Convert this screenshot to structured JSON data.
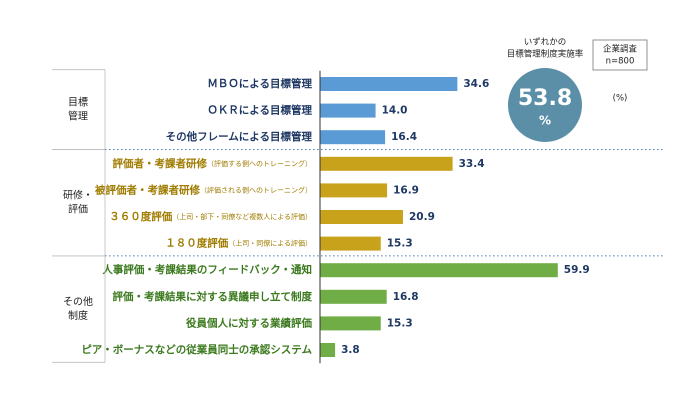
{
  "chart_data": {
    "type": "bar",
    "orientation": "horizontal",
    "groups": [
      {
        "label": [
          "目標",
          "管理"
        ],
        "color": "#5b9bd5",
        "text_color": "#1f3864",
        "categories": [
          "ＭＢＯによる目標管理",
          "ＯＫＲによる目標管理",
          "その他フレームによる目標管理"
        ],
        "notes": [
          null,
          null,
          null
        ],
        "values": [
          34.6,
          14.0,
          16.4
        ],
        "value_labels": [
          "34.6",
          "14.0",
          "16.4"
        ]
      },
      {
        "label": [
          "研修・",
          "評価"
        ],
        "color": "#c9a21c",
        "text_color": "#a07c00",
        "categories": [
          "評価者・考課者研修",
          "被評価者・考課者研修",
          "３６０度評価",
          "１８０度評価"
        ],
        "notes": [
          "（評価する側へのトレーニング）",
          "（評価される側へのトレーニング）",
          "（上司・部下・同僚など複数人による評価）",
          "（上司・同僚による評価）"
        ],
        "values": [
          33.4,
          16.9,
          20.9,
          15.3
        ],
        "value_labels": [
          "33.4",
          "16.9",
          "20.9",
          "15.3"
        ]
      },
      {
        "label": [
          "その他",
          "制度"
        ],
        "color": "#70ad47",
        "text_color": "#3b7a1e",
        "categories": [
          "人事評価・考課結果のフィードバック・通知",
          "評価・考課結果に対する異議申し立て制度",
          "役員個人に対する業績評価",
          "ピア・ボーナスなどの従業員同士の承認システム"
        ],
        "notes": [
          null,
          null,
          null,
          null
        ],
        "values": [
          59.9,
          16.8,
          15.3,
          3.8
        ],
        "value_labels": [
          "59.9",
          "16.8",
          "15.3",
          "3.8"
        ]
      }
    ],
    "rate": {
      "label": [
        "いずれかの",
        "目標管理制度実施率"
      ],
      "value": 53.8,
      "unit": "%",
      "color": "#5b8fa8"
    },
    "survey_note": [
      "企業調査",
      "n=800"
    ],
    "unit_note": "(%)"
  }
}
